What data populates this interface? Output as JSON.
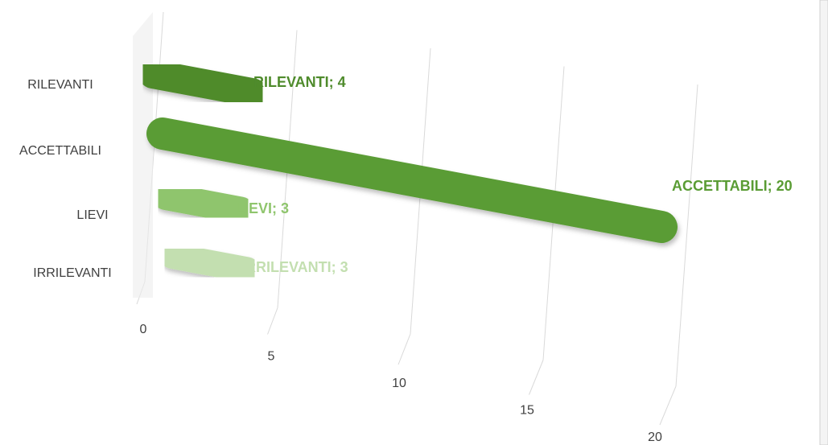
{
  "chart_data": {
    "type": "bar3d",
    "categories": [
      "RILEVANTI",
      "ACCETTABILI",
      "LIEVI",
      "IRRILEVANTI"
    ],
    "values": [
      4,
      20,
      3,
      3
    ],
    "value_labels": [
      "RILEVANTI; 4",
      "ACCETTABILI; 20",
      "LIEVI; 3",
      "IRRILEVANTI; 3"
    ],
    "colors": [
      "#4f8b2c",
      "#5a9c34",
      "#8fc56d",
      "#c3dfb0"
    ],
    "label_colors": [
      "#4f8b2c",
      "#5a9c34",
      "#8fc56d",
      "#c3dfb0"
    ],
    "xlim": [
      0,
      20
    ],
    "xticks": [
      0,
      5,
      10,
      15,
      20
    ],
    "grid": true
  }
}
